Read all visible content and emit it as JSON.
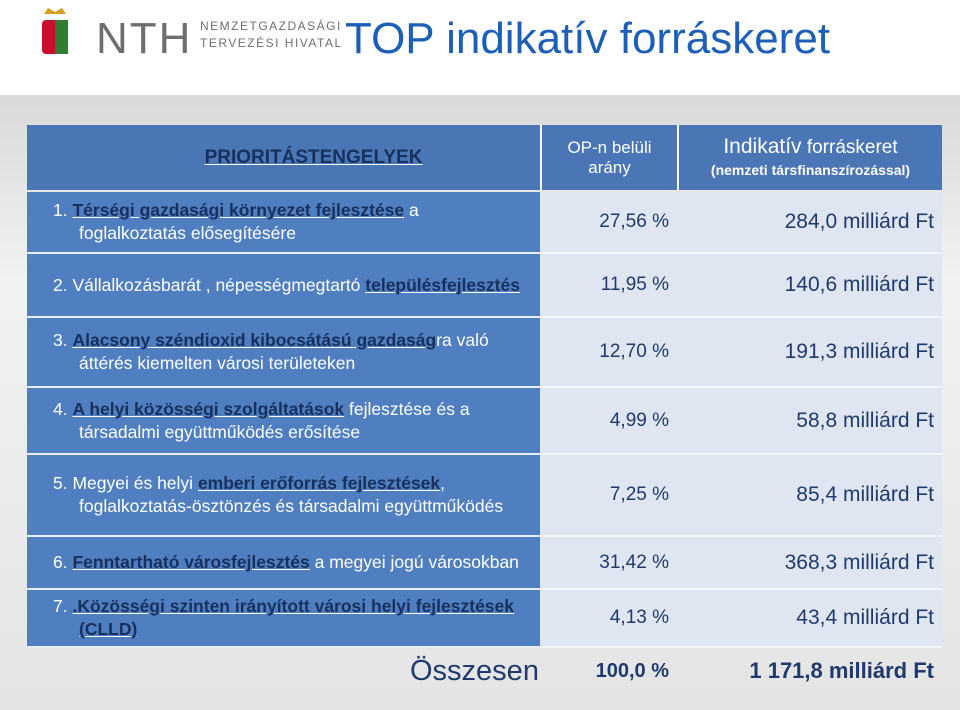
{
  "header": {
    "logo_short": "NTH",
    "logo_name": [
      "NEMZETGAZDASÁGI",
      "TERVEZÉSI HIVATAL"
    ],
    "title": "TOP indikatív forráskeret"
  },
  "table": {
    "columns": {
      "priorities": "PRIORITÁSTENGELYEK",
      "share": "OP-n belüli arány",
      "amount_main": "Indikatív",
      "amount_rest": " forráskeret",
      "amount_note": "(nemzeti társfinanszírozással)"
    },
    "rows": [
      {
        "segments": [
          {
            "text": "1. ",
            "bold": false
          },
          {
            "text": "Térségi gazdasági környezet fejlesztése",
            "bold": true
          },
          {
            "text": " a foglalkoztatás elősegítésére",
            "bold": false
          }
        ],
        "share": "27,56 %",
        "amount": "284,0 milliárd Ft"
      },
      {
        "segments": [
          {
            "text": "2. Vállalkozásbarát , népességmegtartó ",
            "bold": false
          },
          {
            "text": "településfejlesztés",
            "bold": true
          }
        ],
        "share": "11,95 %",
        "amount": "140,6 milliárd Ft"
      },
      {
        "segments": [
          {
            "text": "3. ",
            "bold": false
          },
          {
            "text": "Alacsony széndioxid kibocsátású gazdaság",
            "bold": true
          },
          {
            "text": "ra való áttérés kiemelten városi területeken",
            "bold": false
          }
        ],
        "share": "12,70 %",
        "amount": "191,3 milliárd Ft"
      },
      {
        "segments": [
          {
            "text": "4. ",
            "bold": false
          },
          {
            "text": "A helyi közösségi szolgáltatások",
            "bold": true
          },
          {
            "text": " fejlesztése és a társadalmi együttműködés erősítése",
            "bold": false
          }
        ],
        "share": "4,99 %",
        "amount": "58,8 milliárd Ft"
      },
      {
        "segments": [
          {
            "text": "5. Megyei és helyi ",
            "bold": false
          },
          {
            "text": "emberi erőforrás fejlesztések",
            "bold": true
          },
          {
            "text": ", foglalkoztatás-ösztönzés és társadalmi együttműködés",
            "bold": false
          }
        ],
        "share": "7,25 %",
        "amount": "85,4 milliárd Ft"
      },
      {
        "segments": [
          {
            "text": "6. ",
            "bold": false
          },
          {
            "text": "Fenntartható  városfejlesztés",
            "bold": true
          },
          {
            "text": " a megyei jogú városokban",
            "bold": false
          }
        ],
        "share": "31,42 %",
        "amount": "368,3 milliárd Ft"
      },
      {
        "segments": [
          {
            "text": "7. ",
            "bold": false
          },
          {
            "text": ".Közösségi szinten irányított városi helyi fejlesztések (CLLD)",
            "bold": true
          }
        ],
        "share": "4,13 %",
        "amount": "43,4 milliárd Ft"
      }
    ],
    "total": {
      "label": "Összesen",
      "share": "100,0 %",
      "amount": "1 171,8 milliárd Ft"
    }
  }
}
